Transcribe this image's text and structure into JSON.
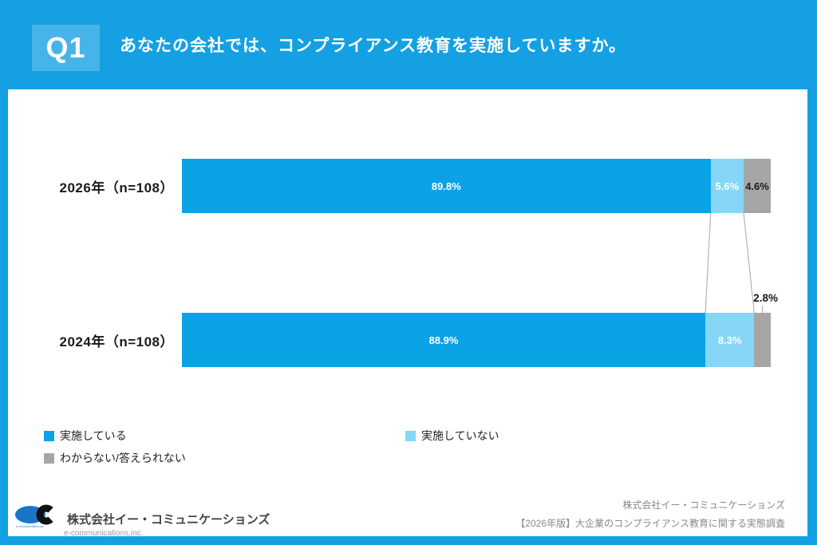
{
  "header": {
    "q_label": "Q1",
    "question": "あなたの会社では、コンプライアンス教育を実施していますか。"
  },
  "chart_data": {
    "type": "bar",
    "orientation": "horizontal",
    "stacked": true,
    "xlim": [
      0,
      100
    ],
    "value_suffix": "%",
    "grid": false,
    "categories": [
      "2026年（n=108）",
      "2024年（n=108）"
    ],
    "series": [
      {
        "name": "実施している",
        "color": "#0ba2e6",
        "label_color": "#ffffff",
        "values": [
          89.8,
          88.9
        ]
      },
      {
        "name": "実施していない",
        "color": "#85d6f7",
        "label_color": "#ffffff",
        "values": [
          5.6,
          8.3
        ]
      },
      {
        "name": "わからない/答えられない",
        "color": "#a6a6a6",
        "label_color": "#1a1a1a",
        "values": [
          4.6,
          2.8
        ],
        "label_placement": [
          "inside",
          "above"
        ]
      }
    ],
    "connector_color": "#b3b3b3",
    "legend_position": "bottom"
  },
  "legend": {
    "items": [
      {
        "label": "実施している",
        "color": "#0ba2e6"
      },
      {
        "label": "実施していない",
        "color": "#85d6f7"
      },
      {
        "label": "わからない/答えられない",
        "color": "#a6a6a6"
      }
    ]
  },
  "footer": {
    "left": {
      "company": "株式会社イー・コミュニケーションズ",
      "company_en": "e-communications,inc.",
      "logo_text": "e-communications,inc.",
      "logo_blue": "#1a75c9",
      "logo_black": "#111111"
    },
    "right": {
      "line1": "株式会社イー・コミュニケーションズ",
      "line2": "【2026年版】大企業のコンプライアンス教育に関する実態調査"
    }
  }
}
